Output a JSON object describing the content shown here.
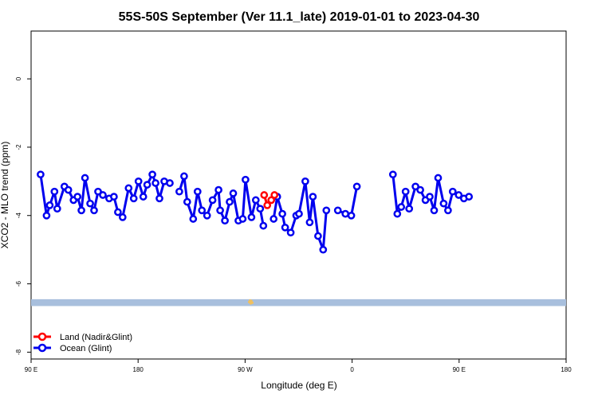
{
  "chart_data": {
    "type": "line",
    "title": "55S-50S September (Ver 11.1_late)   2019-01-01 to 2023-04-30",
    "xlabel": "Longitude (deg E)",
    "ylabel": "XCO2 - MLO trend (ppm)",
    "xlim": [
      -90,
      180
    ],
    "ylim": [
      -8.2,
      1.4
    ],
    "x_ticks": [
      {
        "value": -90,
        "label": "90 E"
      },
      {
        "value": -36,
        "label": "180"
      },
      {
        "value": 18,
        "label": "90 W"
      },
      {
        "value": 72,
        "label": "0"
      },
      {
        "value": 126,
        "label": "90 E"
      },
      {
        "value": 180,
        "label": "180"
      }
    ],
    "y_ticks": [
      {
        "value": 0,
        "label": "0"
      },
      {
        "value": -2,
        "label": "-2"
      },
      {
        "value": -4,
        "label": "-4"
      },
      {
        "value": -6,
        "label": "-6"
      },
      {
        "value": -8,
        "label": "-8"
      }
    ],
    "series": [
      {
        "name": "Land (Nadir&Glint)",
        "color": "#ff0000",
        "segments": [
          [
            [
              27.6,
              -3.4
            ],
            [
              29.2,
              -3.7
            ],
            [
              31.2,
              -3.55
            ],
            [
              32.8,
              -3.4
            ]
          ]
        ]
      },
      {
        "name": "Ocean (Glint)",
        "color": "#0000ee",
        "segments": [
          [
            [
              -85.2,
              -2.8
            ],
            [
              -82.2,
              -4.0
            ],
            [
              -80.6,
              -3.7
            ],
            [
              -78.2,
              -3.3
            ],
            [
              -76.8,
              -3.8
            ],
            [
              -73.2,
              -3.15
            ],
            [
              -71.2,
              -3.25
            ],
            [
              -68.6,
              -3.55
            ],
            [
              -66.6,
              -3.45
            ],
            [
              -64.6,
              -3.85
            ],
            [
              -62.8,
              -2.9
            ],
            [
              -60.2,
              -3.65
            ],
            [
              -58.2,
              -3.85
            ],
            [
              -56.2,
              -3.3
            ],
            [
              -53.8,
              -3.4
            ],
            [
              -50.6,
              -3.5
            ],
            [
              -48.2,
              -3.45
            ],
            [
              -46.2,
              -3.9
            ],
            [
              -43.8,
              -4.05
            ],
            [
              -40.8,
              -3.2
            ],
            [
              -38.2,
              -3.5
            ],
            [
              -35.8,
              -3.0
            ],
            [
              -33.4,
              -3.45
            ],
            [
              -31.4,
              -3.1
            ],
            [
              -28.8,
              -2.8
            ],
            [
              -27.2,
              -3.05
            ],
            [
              -25.2,
              -3.5
            ],
            [
              -22.8,
              -3.0
            ],
            [
              -20.0,
              -3.05
            ]
          ],
          [
            [
              -15.2,
              -3.3
            ],
            [
              -12.8,
              -2.85
            ],
            [
              -11.2,
              -3.6
            ],
            [
              -8.2,
              -4.1
            ],
            [
              -6.0,
              -3.3
            ],
            [
              -3.8,
              -3.85
            ],
            [
              -1.2,
              -4.0
            ],
            [
              1.6,
              -3.55
            ],
            [
              4.6,
              -3.25
            ],
            [
              5.4,
              -3.85
            ],
            [
              7.8,
              -4.15
            ],
            [
              10.2,
              -3.6
            ],
            [
              12.0,
              -3.35
            ],
            [
              14.6,
              -4.15
            ],
            [
              16.8,
              -4.1
            ],
            [
              18.2,
              -2.95
            ],
            [
              21.2,
              -4.05
            ],
            [
              23.4,
              -3.55
            ],
            [
              25.6,
              -3.8
            ],
            [
              27.2,
              -4.3
            ]
          ],
          [
            [
              32.4,
              -4.1
            ],
            [
              34.2,
              -3.45
            ],
            [
              36.8,
              -3.95
            ],
            [
              38.2,
              -4.35
            ],
            [
              41.0,
              -4.5
            ],
            [
              43.8,
              -4.0
            ],
            [
              45.2,
              -3.95
            ],
            [
              48.4,
              -3.0
            ],
            [
              50.6,
              -4.2
            ],
            [
              52.2,
              -3.45
            ],
            [
              54.8,
              -4.6
            ],
            [
              57.4,
              -5.0
            ],
            [
              59.0,
              -3.85
            ]
          ],
          [
            [
              64.8,
              -3.85
            ],
            [
              68.6,
              -3.95
            ],
            [
              71.6,
              -4.0
            ],
            [
              74.4,
              -3.15
            ]
          ],
          [
            [
              92.6,
              -2.8
            ],
            [
              94.8,
              -3.95
            ],
            [
              96.8,
              -3.75
            ],
            [
              99.0,
              -3.3
            ],
            [
              100.8,
              -3.8
            ],
            [
              104.0,
              -3.15
            ],
            [
              106.4,
              -3.25
            ],
            [
              109.0,
              -3.55
            ],
            [
              111.2,
              -3.45
            ],
            [
              113.4,
              -3.85
            ],
            [
              115.4,
              -2.9
            ],
            [
              118.2,
              -3.65
            ],
            [
              120.4,
              -3.85
            ],
            [
              122.8,
              -3.3
            ],
            [
              125.8,
              -3.4
            ],
            [
              128.4,
              -3.5
            ],
            [
              131.0,
              -3.45
            ]
          ]
        ]
      }
    ],
    "land_band": {
      "ymin": -6.65,
      "ymax": -6.45,
      "color": "#a8bfdd"
    },
    "land_band_markers_color": "#f0c060",
    "legend_position": "bottom-left",
    "grid": false
  }
}
